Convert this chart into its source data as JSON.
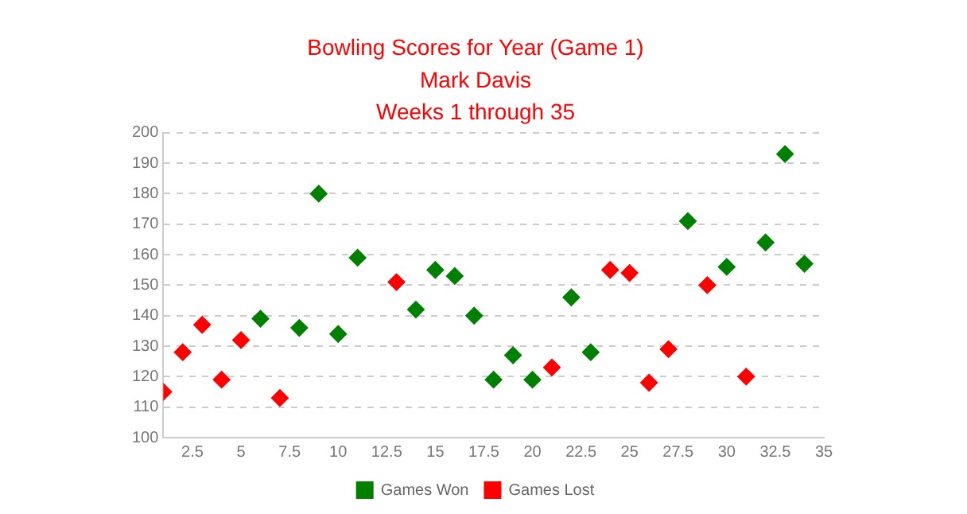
{
  "chart_data": {
    "type": "scatter",
    "title": "Bowling Scores for Year (Game 1)",
    "subtitle": [
      "Mark Davis",
      "Weeks 1 through 35"
    ],
    "series": [
      {
        "name": "Games Won",
        "color": "#008000",
        "x": [
          6,
          8,
          9,
          10,
          11,
          14,
          15,
          16,
          17,
          18,
          19,
          20,
          22,
          23,
          28,
          30,
          32,
          33,
          34
        ],
        "values": [
          139,
          136,
          180,
          134,
          159,
          142,
          155,
          153,
          140,
          119,
          127,
          119,
          146,
          128,
          171,
          156,
          164,
          193,
          157
        ]
      },
      {
        "name": "Games Lost",
        "color": "#ff0000",
        "x": [
          1,
          2,
          3,
          4,
          5,
          7,
          13,
          21,
          24,
          25,
          26,
          27,
          29,
          31
        ],
        "values": [
          115,
          128,
          137,
          119,
          132,
          113,
          151,
          123,
          155,
          154,
          118,
          129,
          150,
          120
        ]
      }
    ],
    "xlim": [
      1,
      35
    ],
    "xticks": [
      2.5,
      5,
      7.5,
      10,
      12.5,
      15,
      17.5,
      20,
      22.5,
      25,
      27.5,
      30,
      32.5,
      35
    ],
    "ylim": [
      100,
      200
    ],
    "yticks": [
      100,
      110,
      120,
      130,
      140,
      150,
      160,
      170,
      180,
      190,
      200
    ],
    "grid": "y",
    "legend": "bottom",
    "marker": "diamond"
  }
}
